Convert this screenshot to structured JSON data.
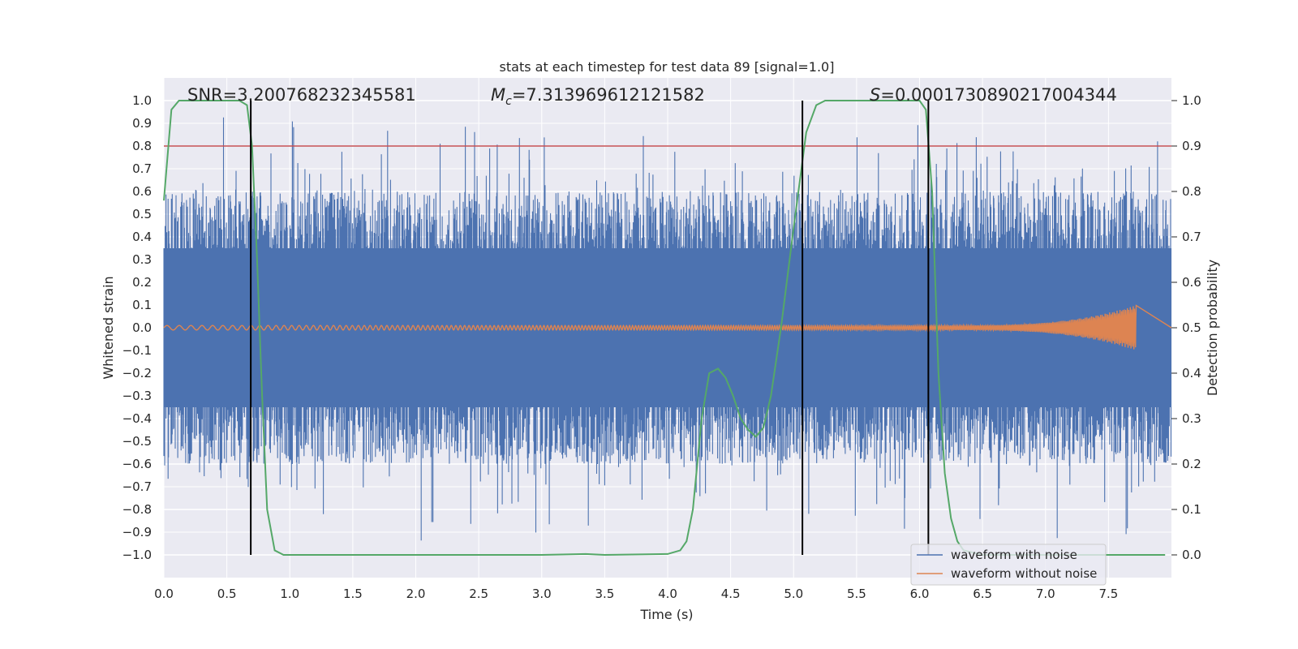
{
  "chart_data": {
    "type": "line",
    "title": "stats at each timestep for test data 89 [signal=1.0]",
    "xlabel": "Time (s)",
    "ylabel": "Whitened strain",
    "y2label": "Detection probability",
    "xlim": [
      0,
      8
    ],
    "ylim": [
      -1.1,
      1.1
    ],
    "y2lim": [
      -0.05,
      1.05
    ],
    "xticks": [
      "0.0",
      "0.5",
      "1.0",
      "1.5",
      "2.0",
      "2.5",
      "3.0",
      "3.5",
      "4.0",
      "4.5",
      "5.0",
      "5.5",
      "6.0",
      "6.5",
      "7.0",
      "7.5"
    ],
    "yticks": [
      "1.0",
      "0.9",
      "0.8",
      "0.7",
      "0.6",
      "0.5",
      "0.4",
      "0.3",
      "0.2",
      "0.1",
      "0.0",
      "-0.1",
      "-0.2",
      "-0.3",
      "-0.4",
      "-0.5",
      "-0.6",
      "-0.7",
      "-0.8",
      "-0.9",
      "-1.0"
    ],
    "y2ticks": [
      "1.0",
      "0.9",
      "0.8",
      "0.7",
      "0.6",
      "0.5",
      "0.4",
      "0.3",
      "0.2",
      "0.1",
      "0.0"
    ],
    "annotations": {
      "snr_label": "SNR=3.200768232345581",
      "mc_symbol": "M",
      "mc_sub": "c",
      "mc_value": "=7.313969612121582",
      "s_symbol": "S",
      "s_value": "=0.0001730890217004344"
    },
    "threshold": {
      "value": 0.9,
      "axis": "y2",
      "color": "#c44e52"
    },
    "vlines": [
      0.69,
      5.07,
      6.07
    ],
    "series": [
      {
        "name": "waveform with noise",
        "color": "#4c72b0",
        "axis": "y",
        "envelope": {
          "typical": 0.35,
          "peak_max": 1.0
        }
      },
      {
        "name": "waveform without noise",
        "color": "#dd8452",
        "axis": "y",
        "end_time": 7.72,
        "peak_amplitude": 0.1
      },
      {
        "name": "",
        "color": "#55a868",
        "axis": "y2",
        "x": [
          0.0,
          0.06,
          0.12,
          0.2,
          0.3,
          0.4,
          0.5,
          0.6,
          0.66,
          0.7,
          0.74,
          0.78,
          0.82,
          0.88,
          0.95,
          1.05,
          1.5,
          2.0,
          2.5,
          3.0,
          3.35,
          3.5,
          4.0,
          4.1,
          4.15,
          4.2,
          4.27,
          4.33,
          4.4,
          4.46,
          4.52,
          4.58,
          4.64,
          4.7,
          4.76,
          4.82,
          4.9,
          5.0,
          5.1,
          5.18,
          5.25,
          5.4,
          5.6,
          5.8,
          6.0,
          6.05,
          6.1,
          6.15,
          6.2,
          6.25,
          6.3,
          6.35,
          6.5,
          7.0,
          7.5,
          7.95
        ],
        "values": [
          0.78,
          0.98,
          1.0,
          1.0,
          1.0,
          1.0,
          1.0,
          1.0,
          0.99,
          0.9,
          0.65,
          0.35,
          0.1,
          0.01,
          0.0,
          0.0,
          0.0,
          0.0,
          0.0,
          0.0,
          0.002,
          0.0,
          0.002,
          0.01,
          0.03,
          0.1,
          0.3,
          0.4,
          0.41,
          0.39,
          0.35,
          0.3,
          0.275,
          0.26,
          0.28,
          0.35,
          0.5,
          0.72,
          0.93,
          0.99,
          1.0,
          1.0,
          1.0,
          1.0,
          1.0,
          0.98,
          0.8,
          0.4,
          0.18,
          0.08,
          0.03,
          0.01,
          0.0,
          0.0,
          0.0,
          0.0
        ]
      }
    ],
    "legend": {
      "placement": "lower-right"
    },
    "grid": true
  }
}
